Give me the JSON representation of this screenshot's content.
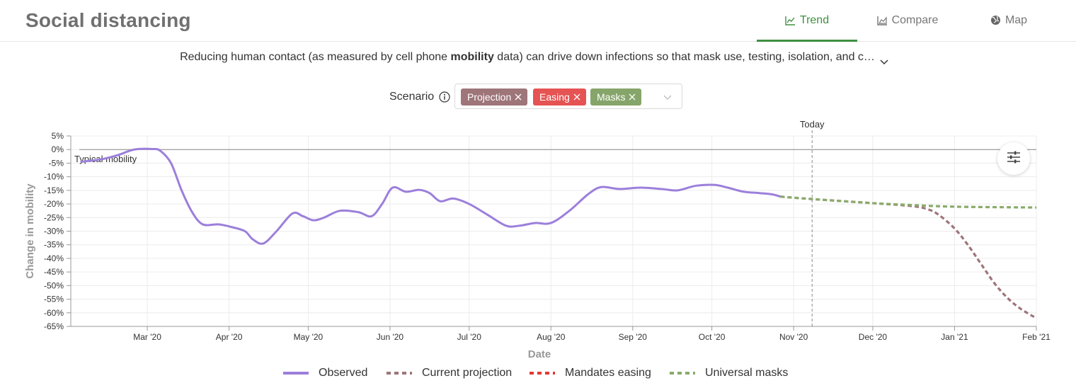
{
  "header": {
    "title": "Social distancing",
    "tabs": [
      {
        "label": "Trend",
        "icon": "line-chart-icon",
        "active": true
      },
      {
        "label": "Compare",
        "icon": "area-chart-icon",
        "active": false
      },
      {
        "label": "Map",
        "icon": "globe-icon",
        "active": false
      }
    ]
  },
  "description": {
    "before": "Reducing human contact (as measured by cell phone ",
    "bold": "mobility",
    "after": " data) can drive down infections so that mask use, testing, isolation, and c…"
  },
  "scenario": {
    "label": "Scenario",
    "chips": [
      {
        "label": "Projection",
        "color": "#9e7579"
      },
      {
        "label": "Easing",
        "color": "#e55353"
      },
      {
        "label": "Masks",
        "color": "#86a56a"
      }
    ]
  },
  "chart_data": {
    "type": "line",
    "xlabel": "Date",
    "ylabel": "Change in mobility",
    "ylim": [
      -65,
      5
    ],
    "yticks": [
      5,
      0,
      -5,
      -10,
      -15,
      -20,
      -25,
      -30,
      -35,
      -40,
      -45,
      -50,
      -55,
      -60,
      -65
    ],
    "ytick_labels": [
      "5%",
      "0%",
      "-5%",
      "-10%",
      "-15%",
      "-20%",
      "-25%",
      "-30%",
      "-35%",
      "-40%",
      "-45%",
      "-50%",
      "-55%",
      "-60%",
      "-65%"
    ],
    "xlim": [
      "2020-02-01",
      "2021-02-01"
    ],
    "xticks": [
      "2020-03-01",
      "2020-04-01",
      "2020-05-01",
      "2020-06-01",
      "2020-07-01",
      "2020-08-01",
      "2020-09-01",
      "2020-10-01",
      "2020-11-01",
      "2020-12-01",
      "2021-01-01",
      "2021-02-01"
    ],
    "xtick_labels": [
      "Mar '20",
      "Apr '20",
      "May '20",
      "Jun '20",
      "Jul '20",
      "Aug '20",
      "Sep '20",
      "Oct '20",
      "Nov '20",
      "Dec '20",
      "Jan '21",
      "Feb '21"
    ],
    "grid": true,
    "reference_line": {
      "y": 0,
      "label": "Typical mobility"
    },
    "today": {
      "x": "2020-11-08",
      "label": "Today"
    },
    "series": [
      {
        "name": "Observed",
        "color": "#9c7fdb",
        "dashed": false,
        "points": [
          [
            "2020-02-05",
            -4.5
          ],
          [
            "2020-02-13",
            -3.5
          ],
          [
            "2020-02-19",
            -2.0
          ],
          [
            "2020-02-25",
            0.0
          ],
          [
            "2020-03-03",
            0.2
          ],
          [
            "2020-03-06",
            -0.5
          ],
          [
            "2020-03-10",
            -5.0
          ],
          [
            "2020-03-14",
            -15.0
          ],
          [
            "2020-03-18",
            -23.0
          ],
          [
            "2020-03-22",
            -27.5
          ],
          [
            "2020-03-28",
            -27.5
          ],
          [
            "2020-04-02",
            -28.5
          ],
          [
            "2020-04-07",
            -30.0
          ],
          [
            "2020-04-10",
            -33.0
          ],
          [
            "2020-04-14",
            -34.5
          ],
          [
            "2020-04-19",
            -30.0
          ],
          [
            "2020-04-25",
            -23.5
          ],
          [
            "2020-04-29",
            -24.5
          ],
          [
            "2020-05-03",
            -26.0
          ],
          [
            "2020-05-07",
            -25.0
          ],
          [
            "2020-05-13",
            -22.5
          ],
          [
            "2020-05-20",
            -23.0
          ],
          [
            "2020-05-25",
            -24.5
          ],
          [
            "2020-05-29",
            -20.0
          ],
          [
            "2020-06-02",
            -14.0
          ],
          [
            "2020-06-07",
            -15.5
          ],
          [
            "2020-06-12",
            -14.8
          ],
          [
            "2020-06-16",
            -16.0
          ],
          [
            "2020-06-20",
            -19.0
          ],
          [
            "2020-06-25",
            -18.0
          ],
          [
            "2020-07-01",
            -20.0
          ],
          [
            "2020-07-08",
            -24.0
          ],
          [
            "2020-07-15",
            -28.0
          ],
          [
            "2020-07-20",
            -28.0
          ],
          [
            "2020-07-26",
            -27.0
          ],
          [
            "2020-08-01",
            -27.0
          ],
          [
            "2020-08-08",
            -22.5
          ],
          [
            "2020-08-15",
            -16.5
          ],
          [
            "2020-08-20",
            -13.8
          ],
          [
            "2020-08-27",
            -14.5
          ],
          [
            "2020-09-04",
            -14.0
          ],
          [
            "2020-09-12",
            -14.5
          ],
          [
            "2020-09-18",
            -15.0
          ],
          [
            "2020-09-25",
            -13.3
          ],
          [
            "2020-10-02",
            -13.0
          ],
          [
            "2020-10-07",
            -14.0
          ],
          [
            "2020-10-13",
            -15.5
          ],
          [
            "2020-10-19",
            -16.0
          ],
          [
            "2020-10-24",
            -16.5
          ],
          [
            "2020-10-27",
            -17.3
          ]
        ]
      },
      {
        "name": "Current projection",
        "color": "#9e7579",
        "dashed": true,
        "points": [
          [
            "2020-10-27",
            -17.3
          ],
          [
            "2020-11-08",
            -18.2
          ],
          [
            "2020-12-01",
            -19.7
          ],
          [
            "2020-12-16",
            -20.8
          ],
          [
            "2020-12-22",
            -22.0
          ],
          [
            "2020-12-26",
            -24.0
          ],
          [
            "2021-01-01",
            -29.0
          ],
          [
            "2021-01-06",
            -35.0
          ],
          [
            "2021-01-11",
            -42.0
          ],
          [
            "2021-01-16",
            -49.0
          ],
          [
            "2021-01-21",
            -54.5
          ],
          [
            "2021-01-26",
            -58.5
          ],
          [
            "2021-02-01",
            -62.0
          ]
        ]
      },
      {
        "name": "Mandates easing",
        "color": "#e53935",
        "dashed": true,
        "points": []
      },
      {
        "name": "Universal masks",
        "color": "#8aab6b",
        "dashed": true,
        "points": [
          [
            "2020-10-27",
            -17.3
          ],
          [
            "2020-11-08",
            -18.2
          ],
          [
            "2020-12-01",
            -19.7
          ],
          [
            "2020-12-16",
            -20.4
          ],
          [
            "2021-01-01",
            -21.0
          ],
          [
            "2021-02-01",
            -21.3
          ]
        ]
      }
    ]
  }
}
